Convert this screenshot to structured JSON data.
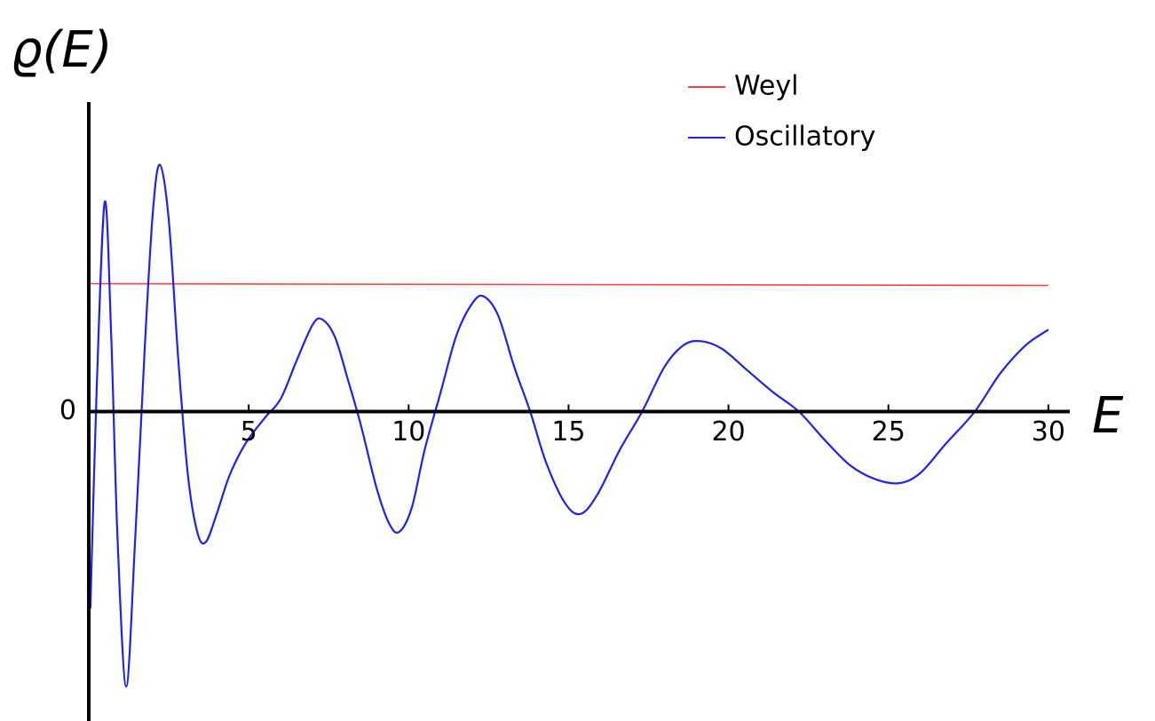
{
  "chart_data": {
    "type": "line",
    "x_label": "E",
    "y_label": "ϱ(E)",
    "xlim": [
      0,
      30.67
    ],
    "ylim": [
      -2.42,
      2.42
    ],
    "xticks": [
      5,
      10,
      15,
      20,
      25,
      30
    ],
    "yticks": [
      0
    ],
    "legend": "top-right",
    "series": [
      {
        "name": "Weyl",
        "color": "#ff4040",
        "x": [
          0.05,
          30
        ],
        "values": [
          1.0,
          0.986
        ]
      },
      {
        "name": "Oscillatory",
        "color": "#2020f0",
        "x": [
          0.05,
          0.25,
          0.5,
          0.7,
          0.9,
          1.17,
          1.45,
          1.75,
          2.0,
          2.22,
          2.5,
          2.8,
          3.1,
          3.4,
          3.66,
          4.0,
          4.4,
          4.9,
          5.5,
          6.0,
          6.5,
          7.0,
          7.3,
          7.7,
          8.1,
          8.5,
          9.0,
          9.4,
          9.71,
          10.1,
          10.5,
          11.0,
          11.5,
          12.0,
          12.35,
          12.8,
          13.3,
          13.8,
          14.3,
          14.9,
          15.38,
          15.9,
          16.6,
          17.3,
          18.0,
          18.6,
          19.15,
          19.8,
          20.6,
          21.4,
          22.2,
          23.0,
          23.8,
          24.6,
          25.34,
          26.0,
          26.8,
          27.7,
          28.5,
          29.3,
          30.0
        ],
        "values": [
          -1.54,
          0.2,
          1.64,
          0.6,
          -1.0,
          -2.15,
          -1.0,
          0.5,
          1.55,
          1.93,
          1.5,
          0.4,
          -0.5,
          -0.95,
          -1.02,
          -0.8,
          -0.5,
          -0.25,
          -0.05,
          0.1,
          0.4,
          0.68,
          0.72,
          0.58,
          0.25,
          -0.1,
          -0.6,
          -0.88,
          -0.94,
          -0.75,
          -0.3,
          0.15,
          0.6,
          0.85,
          0.9,
          0.75,
          0.35,
          0.0,
          -0.4,
          -0.72,
          -0.8,
          -0.65,
          -0.3,
          0.0,
          0.35,
          0.52,
          0.55,
          0.49,
          0.32,
          0.15,
          0.0,
          -0.22,
          -0.42,
          -0.53,
          -0.56,
          -0.48,
          -0.25,
          0.0,
          0.3,
          0.52,
          0.64
        ]
      }
    ]
  }
}
